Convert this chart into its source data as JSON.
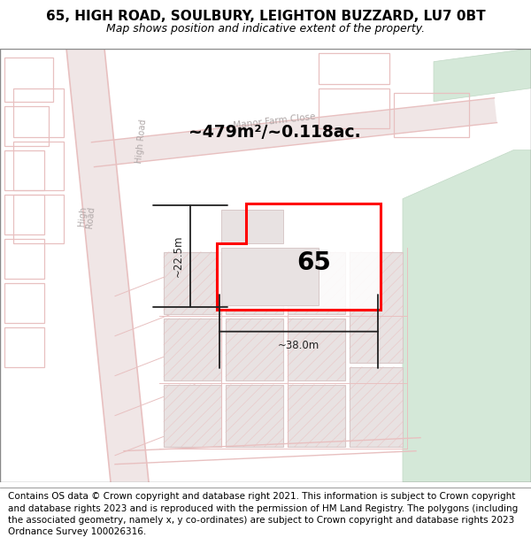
{
  "title": "65, HIGH ROAD, SOULBURY, LEIGHTON BUZZARD, LU7 0BT",
  "subtitle": "Map shows position and indicative extent of the property.",
  "footer": "Contains OS data © Crown copyright and database right 2021. This information is subject to Crown copyright and database rights 2023 and is reproduced with the permission of HM Land Registry. The polygons (including the associated geometry, namely x, y co-ordinates) are subject to Crown copyright and database rights 2023 Ordnance Survey 100026316.",
  "area_text": "~479m²/~0.118ac.",
  "dim_width": "~38.0m",
  "dim_height": "~22.5m",
  "label_65": "65",
  "bg_color": "#f7f3f3",
  "road_fill": "#f0e6e6",
  "road_line": "#e8c0c0",
  "building_fill": "#e8e2e2",
  "building_edge": "#d8c8c8",
  "green_fill": "#d4e8d8",
  "green_edge": "#c0d8c4",
  "highlight_color": "#ff0000",
  "dim_color": "#222222",
  "road_label_color": "#b0a8a8",
  "title_fontsize": 11,
  "subtitle_fontsize": 9,
  "footer_fontsize": 7.5
}
